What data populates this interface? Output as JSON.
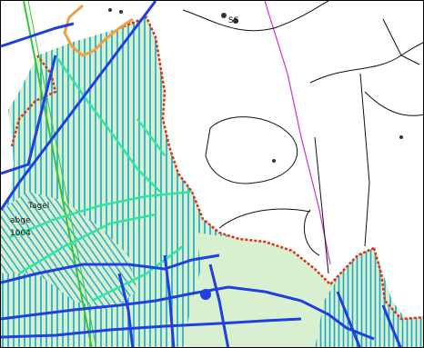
{
  "map": {
    "labels": {
      "block_label_1": "Tagel",
      "block_label_2": "abge",
      "block_label_3": "1004",
      "block_label_4": "SS"
    },
    "colors": {
      "background": "#ffffff",
      "forest_fill": "#d8f0d0",
      "hatch_cyan": "#1aa7c9",
      "road_blue": "#1f3fe0",
      "path_green": "#2ee6a0",
      "boundary_red": "#e03010",
      "boundary_orange": "#f0a040",
      "line_magenta": "#cc33cc",
      "line_black": "#111111",
      "rail_green": "#33c833"
    },
    "features": [
      {
        "name": "forest-area",
        "type": "polygon-hatched"
      },
      {
        "name": "forest-road-network",
        "type": "lines"
      },
      {
        "name": "forest-paths",
        "type": "lines"
      },
      {
        "name": "forest-boundary",
        "type": "dashed-boundary"
      },
      {
        "name": "contour-lines",
        "type": "lines"
      },
      {
        "name": "property-line",
        "type": "line"
      }
    ]
  }
}
